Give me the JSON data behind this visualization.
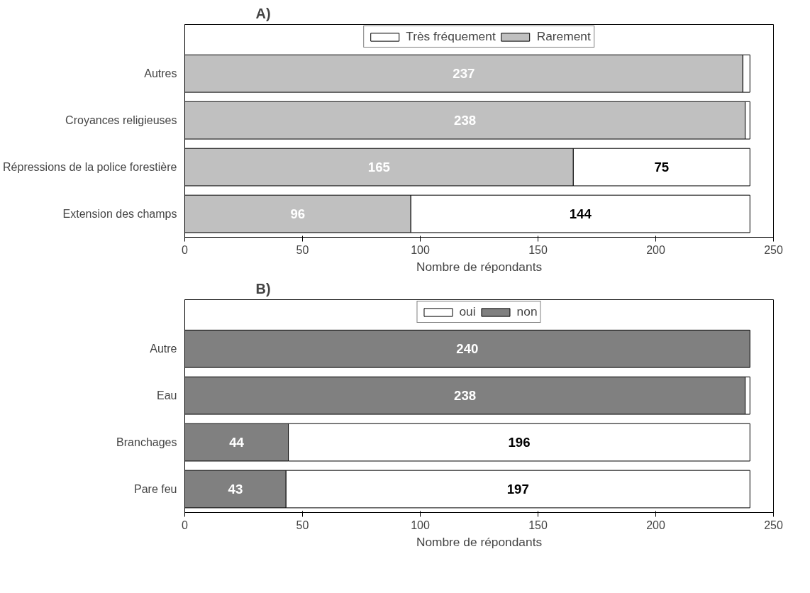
{
  "chart_data": [
    {
      "type": "bar",
      "title": "A)",
      "orientation": "horizontal",
      "stacked": true,
      "categories": [
        "Autres",
        "Croyances religieuses",
        "Répressions de la police forestière",
        "Extension des champs"
      ],
      "xlabel": "Nombre de répondants",
      "xlim": [
        0,
        250
      ],
      "xticks": [
        0,
        50,
        100,
        150,
        200,
        250
      ],
      "grid": false,
      "legend": "top",
      "series": [
        {
          "name": "Rarement",
          "color": "#c0c0c0",
          "values": [
            237,
            238,
            165,
            96
          ],
          "value_labels": [
            "237",
            "238",
            "165",
            "96"
          ]
        },
        {
          "name": "Très fréquement",
          "color": "#ffffff",
          "values": [
            3,
            2,
            75,
            144
          ],
          "value_labels": [
            null,
            null,
            "75",
            "144"
          ]
        }
      ]
    },
    {
      "type": "bar",
      "title": "B)",
      "orientation": "horizontal",
      "stacked": true,
      "categories": [
        "Autre",
        "Eau",
        "Branchages",
        "Pare feu"
      ],
      "xlabel": "Nombre de répondants",
      "xlim": [
        0,
        250
      ],
      "xticks": [
        0,
        50,
        100,
        150,
        200,
        250
      ],
      "grid": false,
      "legend": "top",
      "series": [
        {
          "name": "non",
          "color": "#808080",
          "values": [
            240,
            238,
            44,
            43
          ],
          "value_labels": [
            "240",
            "238",
            "44",
            "43"
          ]
        },
        {
          "name": "oui",
          "color": "#ffffff",
          "values": [
            0,
            2,
            196,
            197
          ],
          "value_labels": [
            null,
            null,
            "196",
            "197"
          ]
        }
      ]
    }
  ]
}
